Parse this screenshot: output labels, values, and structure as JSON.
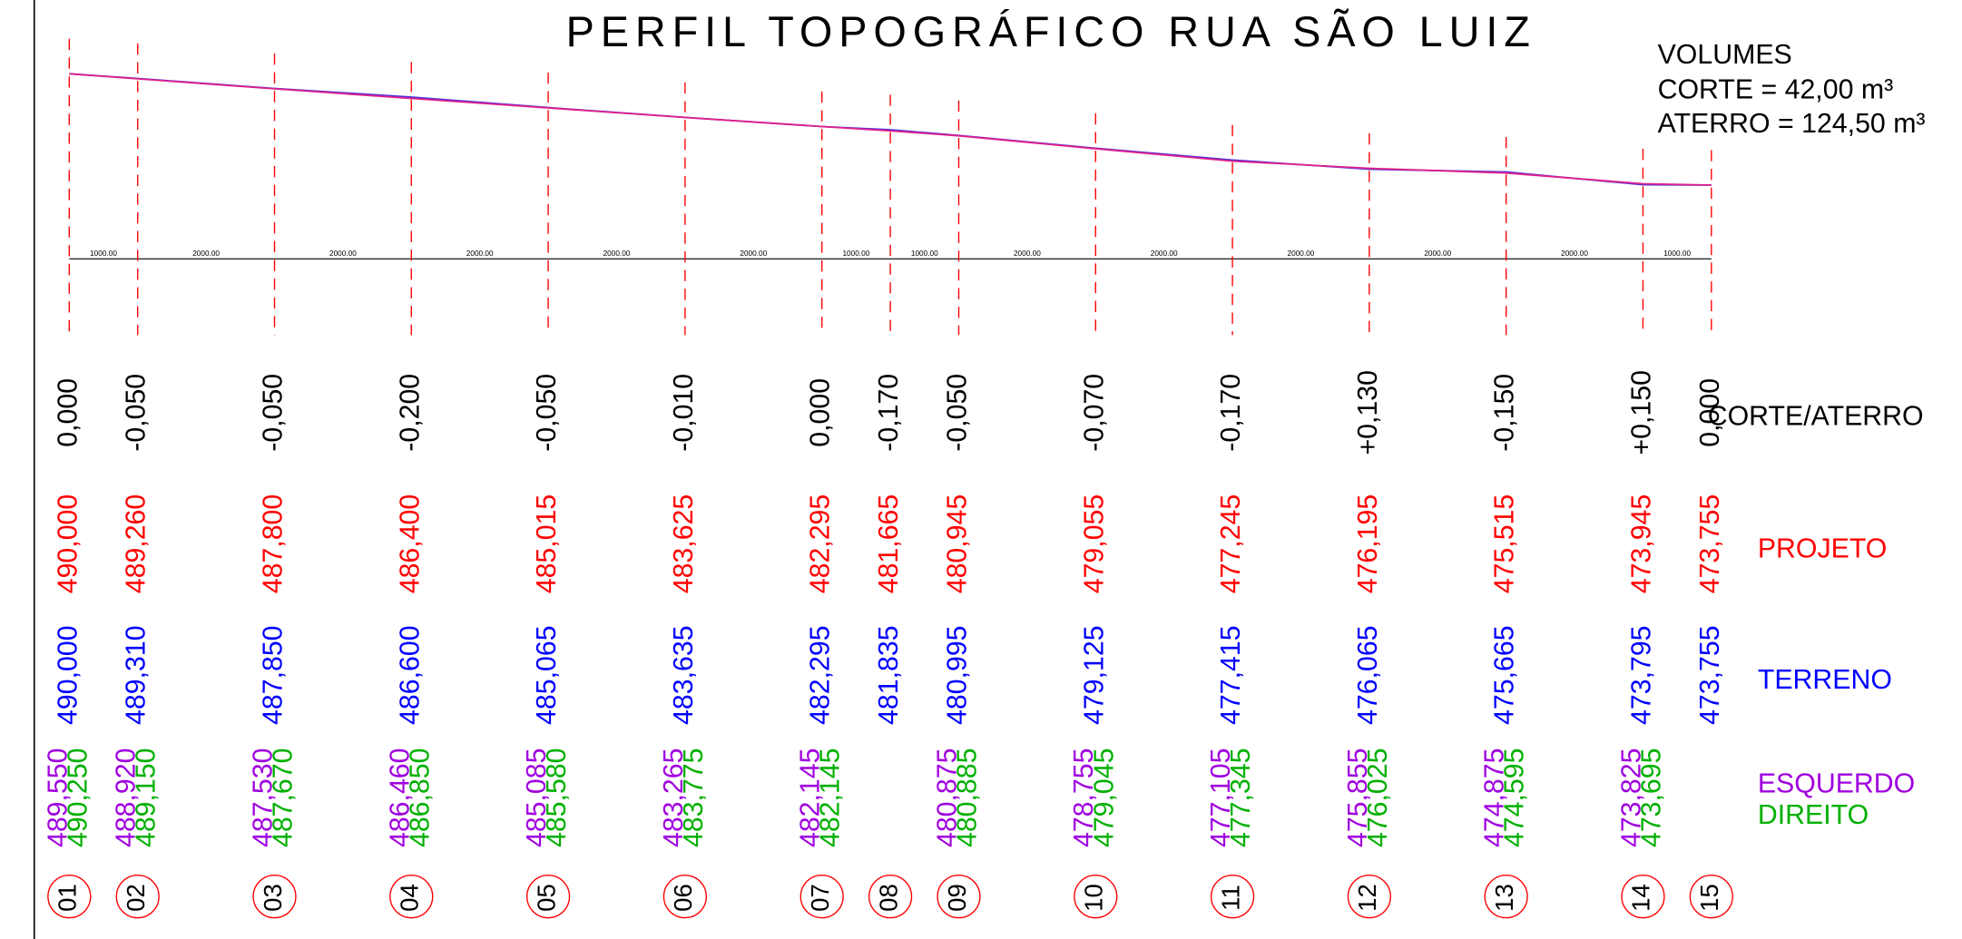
{
  "title": "PERFIL TOPOGRÁFICO RUA SÃO LUIZ",
  "volumes": [
    "VOLUMES",
    "CORTE = 42,00 m³",
    "ATERRO = 124,50 m³"
  ],
  "row_labels": {
    "corte_aterro": "CORTE/ATERRO",
    "projeto": "PROJETO",
    "terreno": "TERRENO",
    "esquerdo": "ESQUERDO",
    "direito": "DIREITO"
  },
  "distances": [
    "1000.00",
    "2000.00",
    "2000.00",
    "2000.00",
    "2000.00",
    "2000.00",
    "1000.00",
    "1000.00",
    "2000.00",
    "2000.00",
    "2000.00",
    "2000.00",
    "2000.00",
    "1000.00"
  ],
  "stations": [
    {
      "number": "01",
      "corte_aterro": "0,000",
      "projeto": "490,000",
      "terreno": "490,000",
      "esquerdo": "489,550",
      "direito": "490,250"
    },
    {
      "number": "02",
      "corte_aterro": "-0,050",
      "projeto": "489,260",
      "terreno": "489,310",
      "esquerdo": "488,920",
      "direito": "489,150"
    },
    {
      "number": "03",
      "corte_aterro": "-0,050",
      "projeto": "487,800",
      "terreno": "487,850",
      "esquerdo": "487,530",
      "direito": "487,670"
    },
    {
      "number": "04",
      "corte_aterro": "-0,200",
      "projeto": "486,400",
      "terreno": "486,600",
      "esquerdo": "486,460",
      "direito": "486,850"
    },
    {
      "number": "05",
      "corte_aterro": "-0,050",
      "projeto": "485,015",
      "terreno": "485,065",
      "esquerdo": "485,085",
      "direito": "485,580"
    },
    {
      "number": "06",
      "corte_aterro": "-0,010",
      "projeto": "483,625",
      "terreno": "483,635",
      "esquerdo": "483,265",
      "direito": "483,775"
    },
    {
      "number": "07",
      "corte_aterro": "0,000",
      "projeto": "482,295",
      "terreno": "482,295",
      "esquerdo": "482,145",
      "direito": "482,145"
    },
    {
      "number": "08",
      "corte_aterro": "-0,170",
      "projeto": "481,665",
      "terreno": "481,835",
      "esquerdo": null,
      "direito": null
    },
    {
      "number": "09",
      "corte_aterro": "-0,050",
      "projeto": "480,945",
      "terreno": "480,995",
      "esquerdo": "480,875",
      "direito": "480,885"
    },
    {
      "number": "10",
      "corte_aterro": "-0,070",
      "projeto": "479,055",
      "terreno": "479,125",
      "esquerdo": "478,755",
      "direito": "479,045"
    },
    {
      "number": "11",
      "corte_aterro": "-0,170",
      "projeto": "477,245",
      "terreno": "477,415",
      "esquerdo": "477,105",
      "direito": "477,345"
    },
    {
      "number": "12",
      "corte_aterro": "+0,130",
      "projeto": "476,195",
      "terreno": "476,065",
      "esquerdo": "475,855",
      "direito": "476,025"
    },
    {
      "number": "13",
      "corte_aterro": "-0,150",
      "projeto": "475,515",
      "terreno": "475,665",
      "esquerdo": "474,875",
      "direito": "474,595"
    },
    {
      "number": "14",
      "corte_aterro": "+0,150",
      "projeto": "473,945",
      "terreno": "473,795",
      "esquerdo": "473,825",
      "direito": "473,695"
    },
    {
      "number": "15",
      "corte_aterro": "0,000",
      "projeto": "473,755",
      "terreno": "473,755",
      "esquerdo": null,
      "direito": null
    }
  ]
}
